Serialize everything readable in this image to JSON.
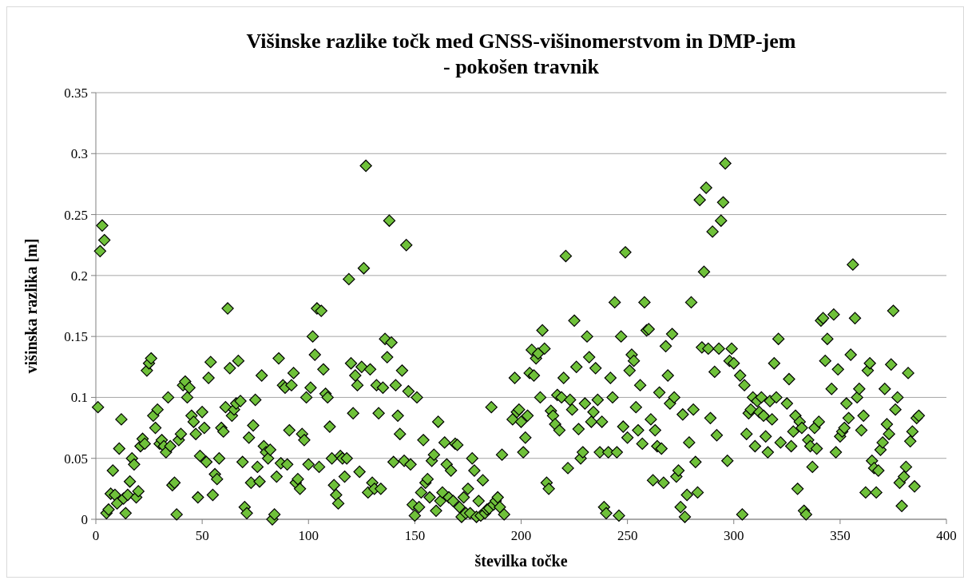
{
  "chart_data": {
    "type": "scatter",
    "title": "Višinske razlike točk med GNSS-višinomerstvom in DMP-jem\n- pokošen travnik",
    "xlabel": "številka točke",
    "ylabel": "višinska razlika [m]",
    "xlim": [
      0,
      400
    ],
    "xticks": [
      0,
      50,
      100,
      150,
      200,
      250,
      300,
      350,
      400
    ],
    "ylim": [
      0,
      0.35
    ],
    "yticks": [
      0,
      0.05,
      0.1,
      0.15,
      0.2,
      0.25,
      0.3,
      0.35
    ],
    "grid": "y",
    "marker": "diamond",
    "series": [
      {
        "color": "#6fc13a",
        "x": [
          1,
          2,
          3,
          4,
          5,
          6,
          7,
          8,
          9,
          10,
          11,
          12,
          13,
          14,
          15,
          16,
          17,
          18,
          19,
          20,
          21,
          22,
          23,
          24,
          25,
          26,
          27,
          28,
          29,
          30,
          31,
          32,
          33,
          34,
          35,
          36,
          37,
          38,
          39,
          40,
          41,
          42,
          43,
          44,
          45,
          46,
          47,
          48,
          49,
          50,
          51,
          52,
          53,
          54,
          55,
          56,
          57,
          58,
          59,
          60,
          61,
          62,
          63,
          64,
          65,
          66,
          67,
          68,
          69,
          70,
          71,
          72,
          73,
          74,
          75,
          76,
          77,
          78,
          79,
          80,
          81,
          82,
          83,
          84,
          85,
          86,
          87,
          88,
          89,
          90,
          91,
          92,
          93,
          94,
          95,
          96,
          97,
          98,
          99,
          100,
          101,
          102,
          103,
          104,
          105,
          106,
          107,
          108,
          109,
          110,
          111,
          112,
          113,
          114,
          115,
          116,
          117,
          118,
          119,
          120,
          121,
          122,
          123,
          124,
          125,
          126,
          127,
          128,
          129,
          130,
          131,
          132,
          133,
          134,
          135,
          136,
          137,
          138,
          139,
          140,
          141,
          142,
          143,
          144,
          145,
          146,
          147,
          148,
          149,
          150,
          151,
          152,
          153,
          154,
          155,
          156,
          157,
          158,
          159,
          160,
          161,
          162,
          163,
          164,
          165,
          166,
          167,
          168,
          169,
          170,
          171,
          172,
          173,
          174,
          175,
          176,
          177,
          178,
          179,
          180,
          181,
          182,
          183,
          184,
          185,
          186,
          187,
          188,
          189,
          190,
          191,
          192,
          196,
          197,
          198,
          199,
          200,
          201,
          202,
          203,
          204,
          205,
          206,
          207,
          208,
          209,
          210,
          211,
          212,
          213,
          214,
          215,
          216,
          217,
          218,
          219,
          220,
          221,
          222,
          223,
          224,
          225,
          226,
          227,
          228,
          229,
          230,
          231,
          232,
          233,
          234,
          235,
          236,
          237,
          238,
          239,
          240,
          241,
          242,
          243,
          244,
          245,
          246,
          247,
          248,
          249,
          250,
          251,
          252,
          253,
          254,
          255,
          256,
          257,
          258,
          259,
          260,
          261,
          262,
          263,
          264,
          265,
          266,
          267,
          268,
          269,
          270,
          271,
          272,
          273,
          274,
          275,
          276,
          277,
          278,
          279,
          280,
          281,
          282,
          283,
          284,
          285,
          286,
          287,
          288,
          289,
          290,
          291,
          292,
          293,
          294,
          295,
          296,
          297,
          298,
          299,
          300,
          303,
          304,
          305,
          306,
          307,
          308,
          309,
          310,
          311,
          312,
          313,
          314,
          315,
          316,
          317,
          318,
          319,
          320,
          321,
          322,
          325,
          326,
          327,
          328,
          329,
          330,
          331,
          332,
          333,
          334,
          335,
          336,
          337,
          338,
          339,
          340,
          341,
          342,
          343,
          344,
          346,
          347,
          348,
          349,
          350,
          351,
          352,
          353,
          354,
          355,
          356,
          357,
          358,
          359,
          360,
          361,
          362,
          363,
          364,
          365,
          366,
          367,
          368,
          369,
          370,
          371,
          372,
          373,
          374,
          375,
          376,
          377,
          378,
          379,
          380,
          381,
          382,
          383,
          384,
          385,
          386,
          387
        ],
        "values": [
          0.092,
          0.22,
          0.241,
          0.229,
          0.005,
          0.008,
          0.021,
          0.04,
          0.02,
          0.013,
          0.058,
          0.082,
          0.017,
          0.005,
          0.02,
          0.031,
          0.05,
          0.045,
          0.018,
          0.023,
          0.06,
          0.066,
          0.062,
          0.122,
          0.128,
          0.132,
          0.085,
          0.075,
          0.09,
          0.062,
          0.065,
          0.06,
          0.055,
          0.1,
          0.06,
          0.028,
          0.03,
          0.004,
          0.065,
          0.07,
          0.11,
          0.113,
          0.1,
          0.108,
          0.085,
          0.08,
          0.07,
          0.018,
          0.052,
          0.088,
          0.075,
          0.047,
          0.116,
          0.129,
          0.02,
          0.037,
          0.033,
          0.05,
          0.075,
          0.072,
          0.092,
          0.173,
          0.124,
          0.085,
          0.09,
          0.095,
          0.13,
          0.097,
          0.047,
          0.01,
          0.005,
          0.067,
          0.03,
          0.077,
          0.098,
          0.043,
          0.031,
          0.118,
          0.06,
          0.055,
          0.05,
          0.057,
          0,
          0.004,
          0.035,
          0.132,
          0.046,
          0.11,
          0.108,
          0.045,
          0.073,
          0.11,
          0.12,
          0.03,
          0.033,
          0.025,
          0.07,
          0.065,
          0.1,
          0.045,
          0.108,
          0.15,
          0.135,
          0.173,
          0.043,
          0.171,
          0.123,
          0.103,
          0.1,
          0.076,
          0.05,
          0.028,
          0.02,
          0.013,
          0.052,
          0.05,
          0.035,
          0.05,
          0.197,
          0.128,
          0.087,
          0.118,
          0.11,
          0.039,
          0.125,
          0.206,
          0.29,
          0.022,
          0.123,
          0.03,
          0.025,
          0.11,
          0.087,
          0.025,
          0.108,
          0.148,
          0.133,
          0.245,
          0.145,
          0.047,
          0.11,
          0.085,
          0.07,
          0.122,
          0.048,
          0.225,
          0.105,
          0.045,
          0.012,
          0.003,
          0.1,
          0.01,
          0.022,
          0.065,
          0.03,
          0.033,
          0.018,
          0.048,
          0.053,
          0.007,
          0.08,
          0.015,
          0.022,
          0.063,
          0.045,
          0.018,
          0.04,
          0.015,
          0.062,
          0.061,
          0.01,
          0.002,
          0.018,
          0.005,
          0.025,
          0.005,
          0.05,
          0.04,
          0.002,
          0.015,
          0.003,
          0.032,
          0.005,
          0.008,
          0.009,
          0.092,
          0.012,
          0.015,
          0.018,
          0.01,
          0.053,
          0.004,
          0.082,
          0.116,
          0.088,
          0.09,
          0.08,
          0.055,
          0.067,
          0.085,
          0.12,
          0.139,
          0.118,
          0.132,
          0.136,
          0.1,
          0.155,
          0.14,
          0.03,
          0.025,
          0.089,
          0.085,
          0.078,
          0.102,
          0.073,
          0.1,
          0.116,
          0.216,
          0.042,
          0.098,
          0.09,
          0.163,
          0.125,
          0.074,
          0.05,
          0.055,
          0.095,
          0.15,
          0.133,
          0.08,
          0.088,
          0.124,
          0.098,
          0.055,
          0.08,
          0.01,
          0.005,
          0.055,
          0.116,
          0.1,
          0.178,
          0.055,
          0.003,
          0.15,
          0.076,
          0.219,
          0.067,
          0.122,
          0.135,
          0.13,
          0.092,
          0.073,
          0.11,
          0.062,
          0.178,
          0.155,
          0.156,
          0.082,
          0.032,
          0.073,
          0.06,
          0.104,
          0.058,
          0.03,
          0.142,
          0.118,
          0.095,
          0.152,
          0.1,
          0.035,
          0.04,
          0.01,
          0.086,
          0.002,
          0.02,
          0.063,
          0.178,
          0.09,
          0.047,
          0.022,
          0.262,
          0.141,
          0.203,
          0.272,
          0.14,
          0.083,
          0.236,
          0.121,
          0.069,
          0.14,
          0.245,
          0.26,
          0.292,
          0.048,
          0.13,
          0.14,
          0.128,
          0.118,
          0.004,
          0.11,
          0.07,
          0.087,
          0.09,
          0.1,
          0.06,
          0.097,
          0.088,
          0.1,
          0.085,
          0.068,
          0.055,
          0.097,
          0.082,
          0.128,
          0.1,
          0.148,
          0.063,
          0.095,
          0.115,
          0.06,
          0.072,
          0.085,
          0.025,
          0.08,
          0.075,
          0.007,
          0.004,
          0.065,
          0.06,
          0.043,
          0.075,
          0.058,
          0.08,
          0.163,
          0.165,
          0.13,
          0.148,
          0.107,
          0.168,
          0.055,
          0.123,
          0.068,
          0.072,
          0.075,
          0.095,
          0.083,
          0.135,
          0.209,
          0.165,
          0.1,
          0.107,
          0.073,
          0.085,
          0.022,
          0.122,
          0.128,
          0.048,
          0.042,
          0.022,
          0.04,
          0.057,
          0.063,
          0.107,
          0.078,
          0.07,
          0.127,
          0.171,
          0.09,
          0.1,
          0.03,
          0.011,
          0.035,
          0.043,
          0.12,
          0.064,
          0.072,
          0.027,
          0.083,
          0.085
        ]
      }
    ]
  }
}
